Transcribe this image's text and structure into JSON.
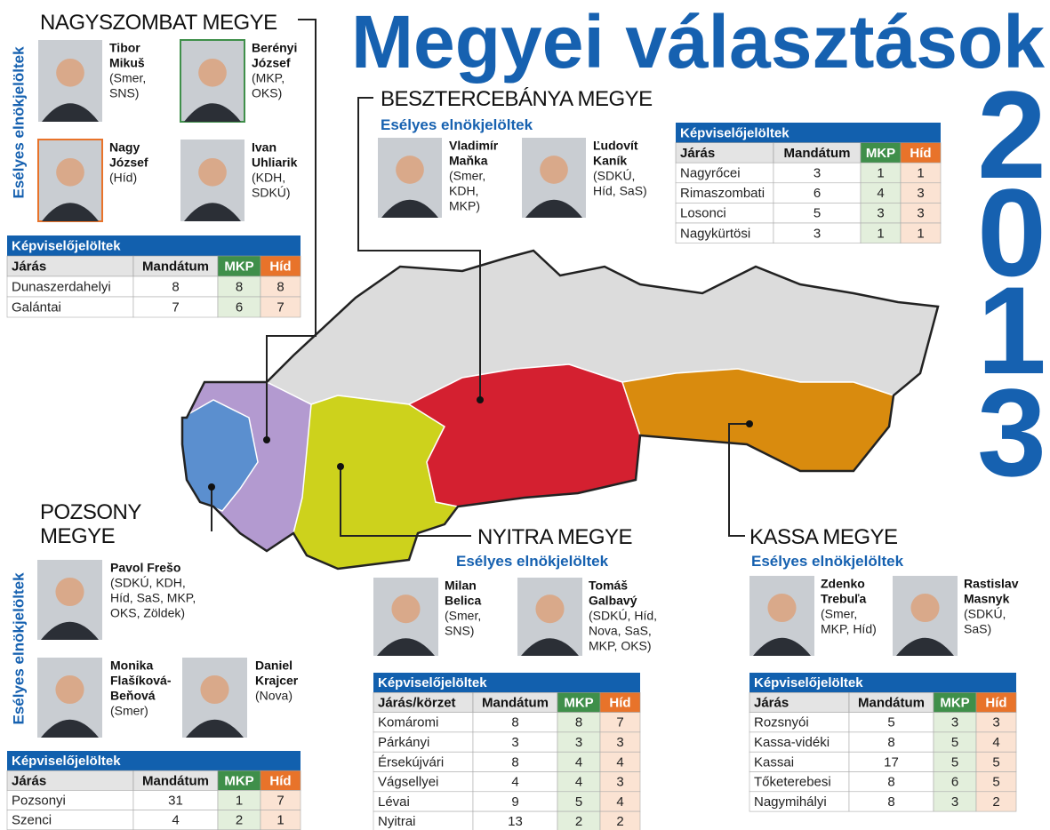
{
  "title": "Megyei választások",
  "year_digits": [
    "2",
    "0",
    "1",
    "3"
  ],
  "regions": [
    {
      "name_lines": [
        "NAGYSZOMBAT MEGYE"
      ],
      "subtitle": "Esélyes elnökjelöltek",
      "candidates": [
        {
          "name_lines": [
            "Tibor",
            "Mikuš"
          ],
          "party_lines": [
            "(Smer,",
            "SNS)"
          ]
        },
        {
          "name_lines": [
            "Berényi",
            "József"
          ],
          "party_lines": [
            "(MKP,",
            "OKS)"
          ]
        },
        {
          "name_lines": [
            "Nagy",
            "József"
          ],
          "party_lines": [
            "(Híd)"
          ]
        },
        {
          "name_lines": [
            "Ivan",
            "Uhliarik"
          ],
          "party_lines": [
            "(KDH,",
            "SDKÚ)"
          ]
        }
      ],
      "table": {
        "title": "Képviselőjelöltek",
        "header": [
          "Járás",
          "Mandátum",
          "MKP",
          "Híd"
        ],
        "rows": [
          [
            "Dunaszerdahelyi",
            8,
            8,
            8
          ],
          [
            "Galántai",
            7,
            6,
            7
          ]
        ]
      }
    },
    {
      "name_lines": [
        "BESZTERCEBÁNYA MEGYE"
      ],
      "subtitle": "Esélyes elnökjelöltek",
      "candidates": [
        {
          "name_lines": [
            "Vladimír",
            "Maňka"
          ],
          "party_lines": [
            "(Smer,",
            "KDH,",
            "MKP)"
          ]
        },
        {
          "name_lines": [
            "Ľudovít",
            "Kaník"
          ],
          "party_lines": [
            "(SDKÚ,",
            "Híd, SaS)"
          ]
        }
      ],
      "table": {
        "title": "Képviselőjelöltek",
        "header": [
          "Járás",
          "Mandátum",
          "MKP",
          "Híd"
        ],
        "rows": [
          [
            "Nagyrőcei",
            3,
            1,
            1
          ],
          [
            "Rimaszombati",
            6,
            4,
            3
          ],
          [
            "Losonci",
            5,
            3,
            3
          ],
          [
            "Nagykürtösi",
            3,
            1,
            1
          ]
        ]
      }
    },
    {
      "name_lines": [
        "POZSONY",
        "MEGYE"
      ],
      "subtitle": "Esélyes elnökjelöltek",
      "candidates": [
        {
          "name_lines": [
            "Pavol Frešo"
          ],
          "party_lines": [
            "(SDKÚ, KDH,",
            "Híd, SaS, MKP,",
            "OKS, Zöldek)"
          ]
        },
        {
          "name_lines": [
            "Monika",
            "Flašíková-",
            "Beňová"
          ],
          "party_lines": [
            "(Smer)"
          ]
        },
        {
          "name_lines": [
            "Daniel",
            "Krajcer"
          ],
          "party_lines": [
            "(Nova)"
          ]
        }
      ],
      "table": {
        "title": "Képviselőjelöltek",
        "header": [
          "Járás",
          "Mandátum",
          "MKP",
          "Híd"
        ],
        "rows": [
          [
            "Pozsonyi",
            31,
            1,
            7
          ],
          [
            "Szenci",
            4,
            2,
            1
          ]
        ]
      }
    },
    {
      "name_lines": [
        "NYITRA MEGYE"
      ],
      "subtitle": "Esélyes elnökjelöltek",
      "candidates": [
        {
          "name_lines": [
            "Milan",
            "Belica"
          ],
          "party_lines": [
            "(Smer,",
            "SNS)"
          ]
        },
        {
          "name_lines": [
            "Tomáš",
            "Galbavý"
          ],
          "party_lines": [
            "(SDKÚ, Híd,",
            "Nova, SaS,",
            "MKP, OKS)"
          ]
        }
      ],
      "table": {
        "title": "Képviselőjelöltek",
        "header": [
          "Járás/körzet",
          "Mandátum",
          "MKP",
          "Híd"
        ],
        "rows": [
          [
            "Komáromi",
            8,
            8,
            7
          ],
          [
            "Párkányi",
            3,
            3,
            3
          ],
          [
            "Érsekújvári",
            8,
            4,
            4
          ],
          [
            "Vágsellyei",
            4,
            4,
            3
          ],
          [
            "Lévai",
            9,
            5,
            4
          ],
          [
            "Nyitrai",
            13,
            2,
            2
          ]
        ]
      }
    },
    {
      "name_lines": [
        "KASSA MEGYE"
      ],
      "subtitle": "Esélyes elnökjelöltek",
      "candidates": [
        {
          "name_lines": [
            "Zdenko",
            "Trebuľa"
          ],
          "party_lines": [
            "(Smer,",
            "MKP, Híd)"
          ]
        },
        {
          "name_lines": [
            "Rastislav",
            "Masnyk"
          ],
          "party_lines": [
            "(SDKÚ,",
            "SaS)"
          ]
        }
      ],
      "table": {
        "title": "Képviselőjelöltek",
        "header": [
          "Járás",
          "Mandátum",
          "MKP",
          "Híd"
        ],
        "rows": [
          [
            "Rozsnyói",
            5,
            3,
            3
          ],
          [
            "Kassa-vidéki",
            8,
            5,
            4
          ],
          [
            "Kassai",
            17,
            5,
            5
          ],
          [
            "Tőketerebesi",
            8,
            6,
            5
          ],
          [
            "Nagymihályi",
            8,
            3,
            2
          ]
        ]
      }
    }
  ]
}
